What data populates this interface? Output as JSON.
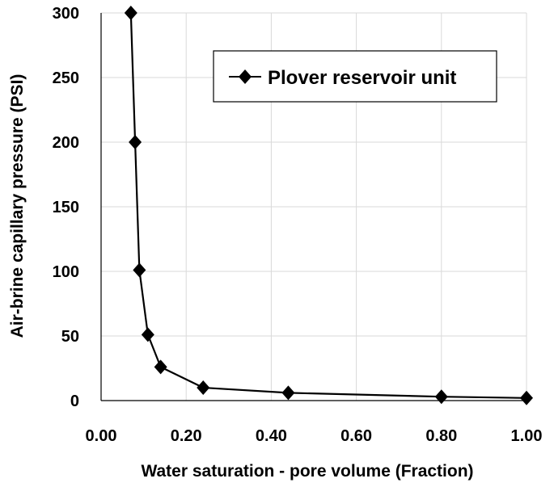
{
  "chart_data": {
    "type": "scatter",
    "title": "",
    "xlabel": "Water saturation - pore volume (Fraction)",
    "ylabel": "Air-brine capillary pressure (PSI)",
    "xlim": [
      0,
      1
    ],
    "ylim": [
      0,
      300
    ],
    "x_ticks": [
      "0.00",
      "0.20",
      "0.40",
      "0.60",
      "0.80",
      "1.00"
    ],
    "y_ticks": [
      "0",
      "50",
      "100",
      "150",
      "200",
      "250",
      "300"
    ],
    "grid": true,
    "legend_position": "top-right",
    "series": [
      {
        "name": "Plover reservoir unit",
        "marker": "diamond",
        "color": "#000000",
        "x": [
          0.07,
          0.08,
          0.09,
          0.11,
          0.14,
          0.24,
          0.44,
          0.8,
          1.0
        ],
        "y": [
          300,
          200,
          101,
          51,
          26,
          10,
          6,
          3,
          2
        ]
      }
    ]
  }
}
